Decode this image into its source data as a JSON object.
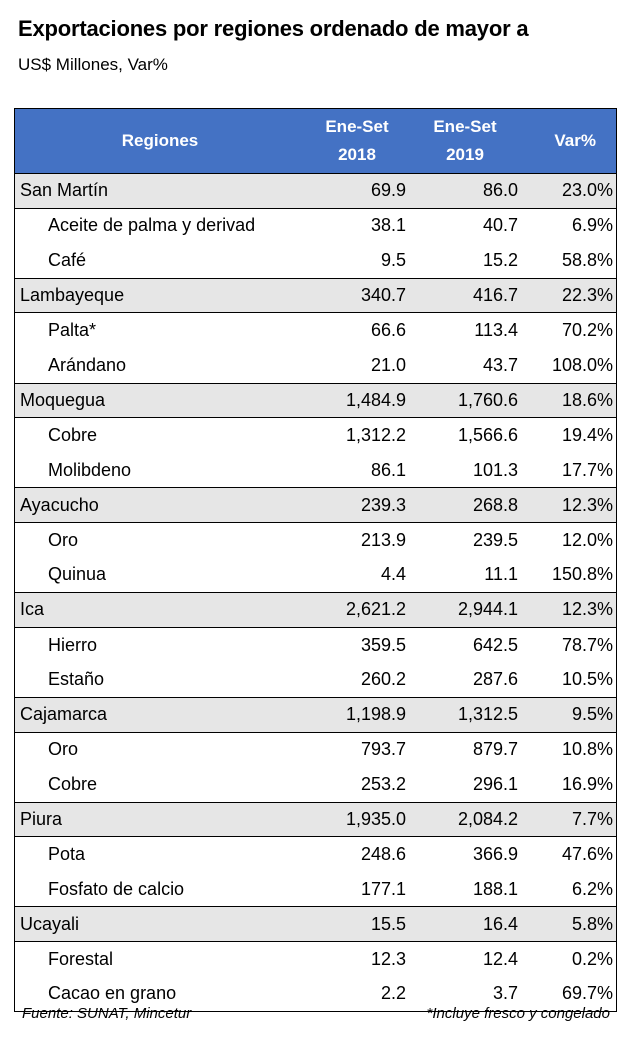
{
  "title": "Exportaciones por regiones ordenado de mayor a",
  "subtitle": "US$ Millones, Var%",
  "chart_data": {
    "type": "table",
    "headers": {
      "region": "Regiones",
      "col1_line1": "Ene-Set",
      "col1_line2": "2018",
      "col2_line1": "Ene-Set",
      "col2_line2": "2019",
      "var": "Var%"
    },
    "groups": [
      {
        "region": {
          "name": "San Martín",
          "v2018": "69.9",
          "v2019": "86.0",
          "var": "23.0%"
        },
        "items": [
          {
            "name": "Aceite de palma y derivad",
            "v2018": "38.1",
            "v2019": "40.7",
            "var": "6.9%"
          },
          {
            "name": "Café",
            "v2018": "9.5",
            "v2019": "15.2",
            "var": "58.8%"
          }
        ]
      },
      {
        "region": {
          "name": "Lambayeque",
          "v2018": "340.7",
          "v2019": "416.7",
          "var": "22.3%"
        },
        "items": [
          {
            "name": "Palta*",
            "v2018": "66.6",
            "v2019": "113.4",
            "var": "70.2%"
          },
          {
            "name": "Arándano",
            "v2018": "21.0",
            "v2019": "43.7",
            "var": "108.0%"
          }
        ]
      },
      {
        "region": {
          "name": "Moquegua",
          "v2018": "1,484.9",
          "v2019": "1,760.6",
          "var": "18.6%"
        },
        "items": [
          {
            "name": "Cobre",
            "v2018": "1,312.2",
            "v2019": "1,566.6",
            "var": "19.4%"
          },
          {
            "name": "Molibdeno",
            "v2018": "86.1",
            "v2019": "101.3",
            "var": "17.7%"
          }
        ]
      },
      {
        "region": {
          "name": "Ayacucho",
          "v2018": "239.3",
          "v2019": "268.8",
          "var": "12.3%"
        },
        "items": [
          {
            "name": "Oro",
            "v2018": "213.9",
            "v2019": "239.5",
            "var": "12.0%"
          },
          {
            "name": "Quinua",
            "v2018": "4.4",
            "v2019": "11.1",
            "var": "150.8%"
          }
        ]
      },
      {
        "region": {
          "name": "Ica",
          "v2018": "2,621.2",
          "v2019": "2,944.1",
          "var": "12.3%"
        },
        "items": [
          {
            "name": "Hierro",
            "v2018": "359.5",
            "v2019": "642.5",
            "var": "78.7%"
          },
          {
            "name": "Estaño",
            "v2018": "260.2",
            "v2019": "287.6",
            "var": "10.5%"
          }
        ]
      },
      {
        "region": {
          "name": "Cajamarca",
          "v2018": "1,198.9",
          "v2019": "1,312.5",
          "var": "9.5%"
        },
        "items": [
          {
            "name": "Oro",
            "v2018": "793.7",
            "v2019": "879.7",
            "var": "10.8%"
          },
          {
            "name": "Cobre",
            "v2018": "253.2",
            "v2019": "296.1",
            "var": "16.9%"
          }
        ]
      },
      {
        "region": {
          "name": "Piura",
          "v2018": "1,935.0",
          "v2019": "2,084.2",
          "var": "7.7%"
        },
        "items": [
          {
            "name": "Pota",
            "v2018": "248.6",
            "v2019": "366.9",
            "var": "47.6%"
          },
          {
            "name": "Fosfato de calcio",
            "v2018": "177.1",
            "v2019": "188.1",
            "var": "6.2%"
          }
        ]
      },
      {
        "region": {
          "name": "Ucayali",
          "v2018": "15.5",
          "v2019": "16.4",
          "var": "5.8%"
        },
        "items": [
          {
            "name": "Forestal",
            "v2018": "12.3",
            "v2019": "12.4",
            "var": "0.2%"
          },
          {
            "name": "Cacao en grano",
            "v2018": "2.2",
            "v2019": "3.7",
            "var": "69.7%"
          }
        ]
      }
    ]
  },
  "footer": {
    "source": "Fuente: SUNAT, Mincetur",
    "note": "*Incluye fresco y congelado"
  },
  "colors": {
    "header_bg": "#4472c4",
    "region_bg": "#e6e6e6"
  }
}
